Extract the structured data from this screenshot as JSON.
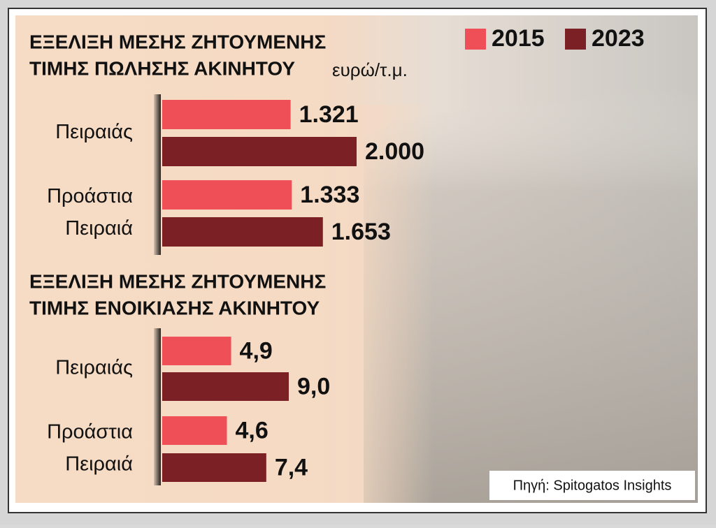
{
  "source": "Πηγή: Spitogatos Insights",
  "chart_data": [
    {
      "type": "bar",
      "orientation": "horizontal",
      "title": [
        "ΕΞΕΛΙΞΗ ΜΕΣΗΣ ΖΗΤΟΥΜΕΝΗΣ",
        "ΤΙΜΗΣ ΠΩΛΗΣΗΣ ΑΚΙΝΗΤΟΥ"
      ],
      "unit": "ευρώ/τ.μ.",
      "categories": [
        [
          "Πειραιάς"
        ],
        [
          "Προάστια",
          "Πειραιά"
        ]
      ],
      "series": [
        {
          "name": "2015",
          "color": "#ef5057",
          "values": [
            1321,
            1333
          ],
          "value_labels": [
            "1.321",
            "1.333"
          ]
        },
        {
          "name": "2023",
          "color": "#7b2024",
          "values": [
            2000,
            1653
          ],
          "value_labels": [
            "2.000",
            "1.653"
          ]
        }
      ],
      "legend": "top-right"
    },
    {
      "type": "bar",
      "orientation": "horizontal",
      "title": [
        "ΕΞΕΛΙΞΗ ΜΕΣΗΣ ΖΗΤΟΥΜΕΝΗΣ",
        "ΤΙΜΗΣ ΕΝΟΙΚΙΑΣΗΣ ΑΚΙΝΗΤΟΥ"
      ],
      "categories": [
        [
          "Πειραιάς"
        ],
        [
          "Προάστια",
          "Πειραιά"
        ]
      ],
      "series": [
        {
          "color": "#ef5057",
          "values": [
            4.9,
            4.6
          ],
          "value_labels": [
            "4,9",
            "4,6"
          ]
        },
        {
          "color": "#7b2024",
          "values": [
            9.0,
            7.4
          ],
          "value_labels": [
            "9,0",
            "7,4"
          ]
        }
      ]
    }
  ]
}
